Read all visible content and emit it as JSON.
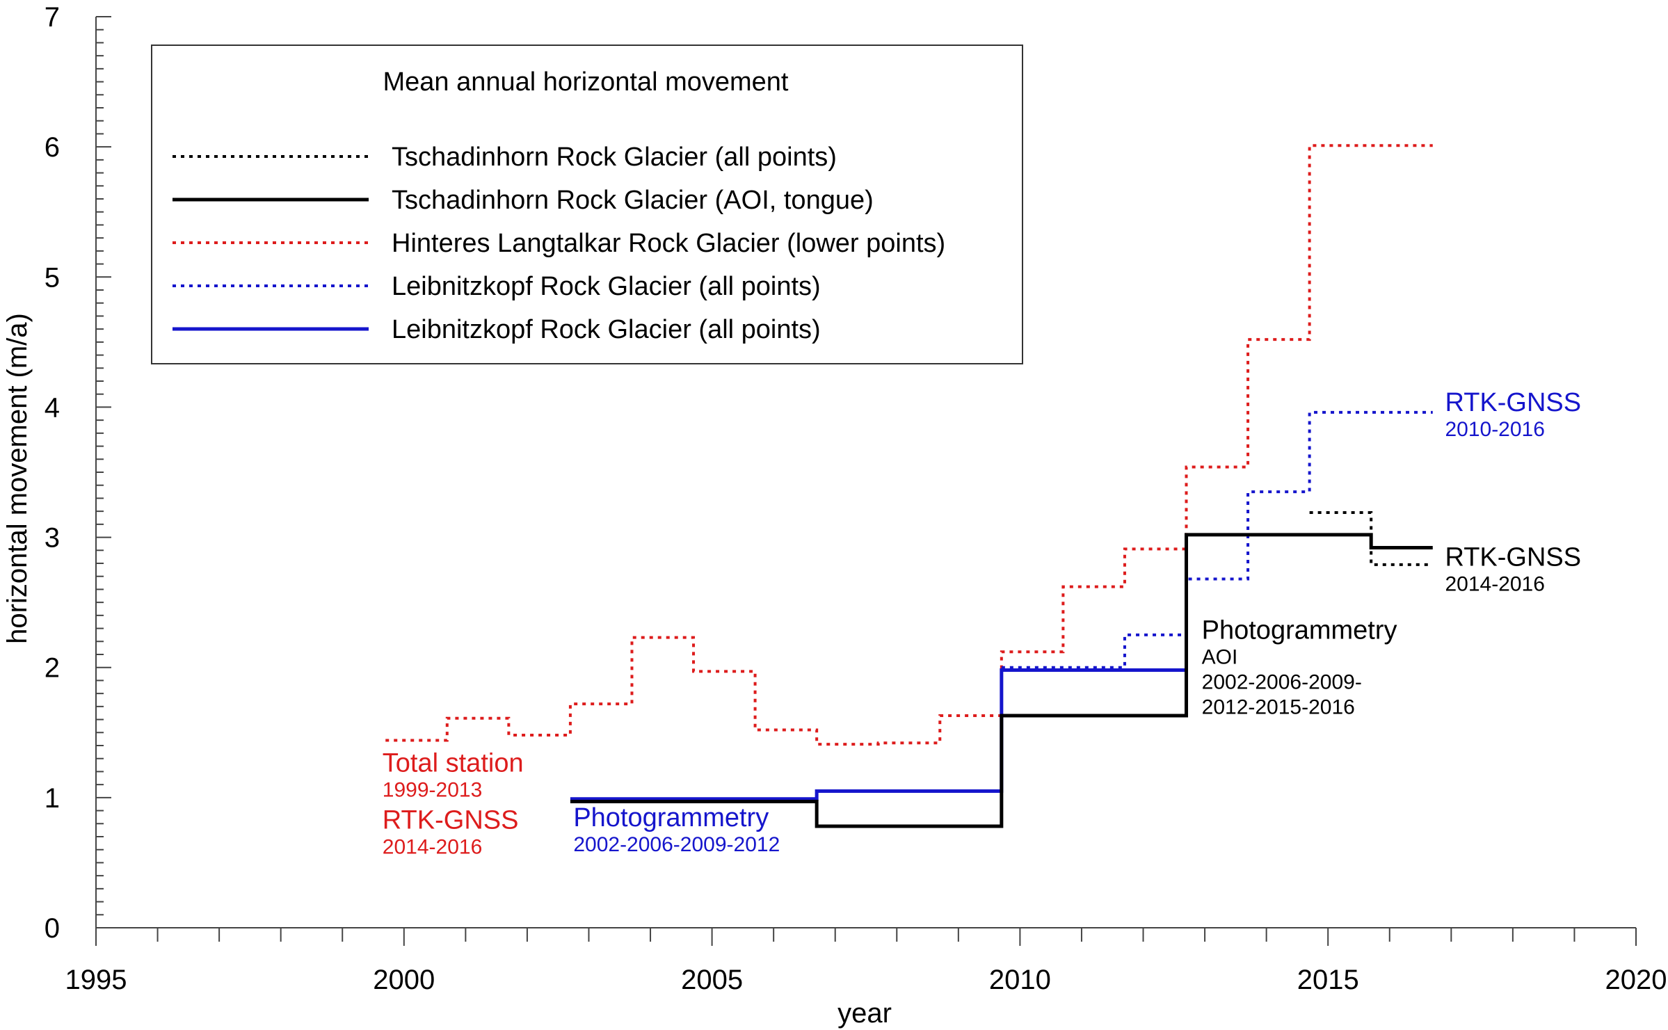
{
  "chart_data": {
    "type": "line",
    "title": "",
    "xlabel": "year",
    "ylabel": "horizontal movement (m/a)",
    "xlim": [
      1995,
      2020
    ],
    "ylim": [
      0,
      7
    ],
    "xticks": [
      1995,
      2000,
      2005,
      2010,
      2015,
      2020
    ],
    "yticks": [
      0,
      1,
      2,
      3,
      4,
      5,
      6,
      7
    ],
    "grid": false,
    "legend": {
      "title": "Mean annual horizontal movement",
      "placement": "top-left",
      "entries": [
        {
          "label": "Tschadinhorn Rock Glacier (all points)",
          "color": "#000000",
          "style": "dotted"
        },
        {
          "label": "Tschadinhorn Rock Glacier (AOI, tongue)",
          "color": "#000000",
          "style": "solid"
        },
        {
          "label": "Hinteres Langtalkar Rock Glacier (lower points)",
          "color": "#dd1c1c",
          "style": "dotted"
        },
        {
          "label": "Leibnitzkopf Rock Glacier (all points)",
          "color": "#1515cc",
          "style": "dotted"
        },
        {
          "label": "Leibnitzkopf Rock Glacier (all points)",
          "color": "#1515cc",
          "style": "solid"
        }
      ]
    },
    "series": [
      {
        "color": "#dd1c1c",
        "style": "dotted",
        "steps": [
          [
            1999.7,
            2000.7,
            1.44
          ],
          [
            2000.7,
            2001.7,
            1.61
          ],
          [
            2001.7,
            2002.7,
            1.48
          ],
          [
            2002.7,
            2003.7,
            1.72
          ],
          [
            2003.7,
            2004.7,
            2.23
          ],
          [
            2004.7,
            2005.7,
            1.97
          ],
          [
            2005.7,
            2006.7,
            1.52
          ],
          [
            2006.7,
            2007.7,
            1.41
          ],
          [
            2007.7,
            2008.7,
            1.42
          ],
          [
            2008.7,
            2009.7,
            1.63
          ],
          [
            2009.7,
            2010.7,
            2.12
          ],
          [
            2010.7,
            2011.7,
            2.62
          ],
          [
            2011.7,
            2012.7,
            2.91
          ],
          [
            2012.7,
            2013.7,
            3.54
          ],
          [
            2013.7,
            2014.7,
            4.52
          ],
          [
            2014.7,
            2016.7,
            6.01
          ]
        ]
      },
      {
        "color": "#1515cc",
        "style": "dotted",
        "steps": [
          [
            2009.7,
            2011.7,
            2.0
          ],
          [
            2011.7,
            2012.7,
            2.25
          ],
          [
            2012.7,
            2013.7,
            2.68
          ],
          [
            2013.7,
            2014.7,
            3.35
          ],
          [
            2014.7,
            2016.7,
            3.96
          ]
        ]
      },
      {
        "color": "#1515cc",
        "style": "solid",
        "steps": [
          [
            2002.7,
            2006.7,
            0.99
          ],
          [
            2006.7,
            2009.7,
            1.05
          ],
          [
            2009.7,
            2012.7,
            1.98
          ]
        ]
      },
      {
        "color": "#000000",
        "style": "dotted",
        "steps": [
          [
            2014.7,
            2015.7,
            3.19
          ],
          [
            2015.7,
            2016.7,
            2.79
          ]
        ]
      },
      {
        "color": "#000000",
        "style": "solid",
        "steps": [
          [
            2002.7,
            2006.7,
            0.97
          ],
          [
            2006.7,
            2009.7,
            0.78
          ],
          [
            2009.7,
            2012.7,
            1.63
          ],
          [
            2012.7,
            2015.7,
            3.02
          ],
          [
            2015.7,
            2016.7,
            2.92
          ]
        ]
      }
    ],
    "annotations": [
      {
        "lines": [
          {
            "text": "Total station",
            "size": "big"
          },
          {
            "text": "1999-2013",
            "size": "small"
          },
          {
            "text": "RTK-GNSS",
            "size": "big"
          },
          {
            "text": "2014-2016",
            "size": "small"
          }
        ],
        "color": "#dd1c1c",
        "at": [
          1999.65,
          1.2
        ]
      },
      {
        "lines": [
          {
            "text": "Photogrammetry",
            "size": "big"
          },
          {
            "text": "2002-2006-2009-2012",
            "size": "small"
          }
        ],
        "color": "#1515cc",
        "at": [
          2002.75,
          0.78
        ]
      },
      {
        "lines": [
          {
            "text": "Photogrammetry",
            "size": "big"
          },
          {
            "text": "AOI",
            "size": "small"
          },
          {
            "text": "2002-2006-2009-",
            "size": "small"
          },
          {
            "text": "2012-2015-2016",
            "size": "small"
          }
        ],
        "color": "#000000",
        "at": [
          2012.95,
          2.22
        ]
      },
      {
        "lines": [
          {
            "text": "RTK-GNSS",
            "size": "big"
          },
          {
            "text": "2010-2016",
            "size": "small"
          }
        ],
        "color": "#1515cc",
        "at": [
          2016.9,
          3.97
        ]
      },
      {
        "lines": [
          {
            "text": "RTK-GNSS",
            "size": "big"
          },
          {
            "text": "2014-2016",
            "size": "small"
          }
        ],
        "color": "#000000",
        "at": [
          2016.9,
          2.78
        ]
      }
    ]
  }
}
